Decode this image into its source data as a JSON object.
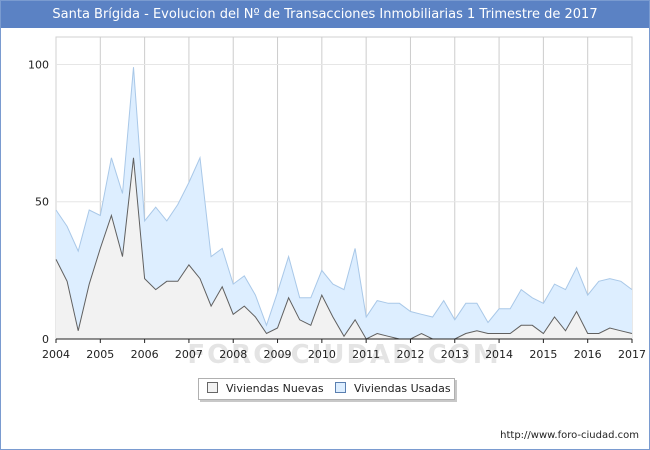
{
  "title": "Santa Brígida - Evolucion del Nº de Transacciones Inmobiliarias 1 Trimestre de 2017",
  "source": "http://www.foro-ciudad.com",
  "watermark": "FORO-CIUDAD.COM",
  "colors": {
    "title_bar": "#5b82c4",
    "nuevas_fill": "#f2f2f2",
    "nuevas_line": "#606060",
    "usadas_fill": "#ddeeff",
    "usadas_line": "#a9c8e8",
    "grid": "#cccccc"
  },
  "legend": {
    "nuevas": "Viviendas Nuevas",
    "usadas": "Viviendas Usadas"
  },
  "chart_data": {
    "type": "area",
    "x_start": 2004,
    "points_per_year": 4,
    "xlim": [
      2004,
      2017
    ],
    "ylim": [
      0,
      110
    ],
    "x_tick_labels": [
      "2004",
      "2005",
      "2006",
      "2007",
      "2008",
      "2009",
      "2010",
      "2011",
      "2012",
      "2013",
      "2014",
      "2015",
      "2016",
      "2017"
    ],
    "y_tick_labels": [
      "0",
      "50",
      "100"
    ],
    "y_ticks": [
      0,
      50,
      100
    ],
    "grid": true,
    "legend_position": "bottom-center",
    "series": [
      {
        "name": "Viviendas Nuevas",
        "values": [
          29,
          21,
          3,
          20,
          33,
          45,
          30,
          66,
          22,
          18,
          21,
          21,
          27,
          22,
          12,
          19,
          9,
          12,
          8,
          2,
          4,
          15,
          7,
          5,
          16,
          8,
          1,
          7,
          0,
          2,
          1,
          0,
          0,
          2,
          0,
          0,
          0,
          2,
          3,
          2,
          2,
          2,
          5,
          5,
          2,
          8,
          3,
          10,
          2,
          2,
          4,
          3,
          2
        ]
      },
      {
        "name": "Viviendas Usadas",
        "values": [
          47,
          41,
          32,
          47,
          45,
          66,
          53,
          99,
          43,
          48,
          43,
          49,
          57,
          66,
          30,
          33,
          20,
          23,
          16,
          5,
          17,
          30,
          15,
          15,
          25,
          20,
          18,
          33,
          8,
          14,
          13,
          13,
          10,
          9,
          8,
          14,
          7,
          13,
          13,
          6,
          11,
          11,
          18,
          15,
          13,
          20,
          18,
          26,
          16,
          21,
          22,
          21,
          18
        ]
      }
    ]
  }
}
